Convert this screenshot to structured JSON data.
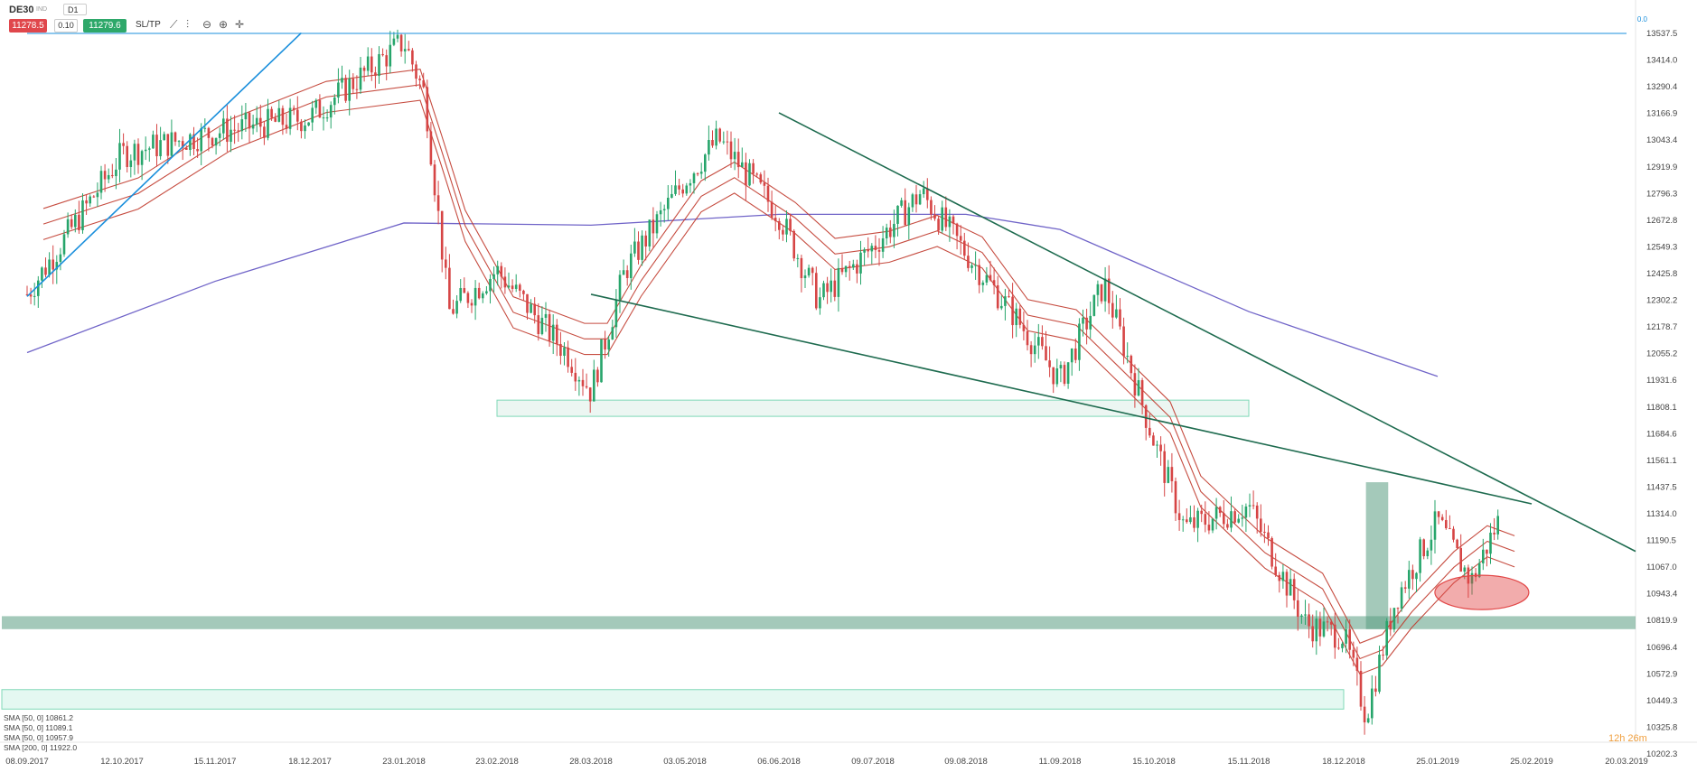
{
  "toolbar": {
    "symbol": "DE30",
    "source": "IND",
    "timeframe": "D1",
    "sell_price": "11278.5",
    "volume": "0.10",
    "buy_price": "11279.6",
    "sltp_label": "SL/TP",
    "icons": [
      "line-chart-icon",
      "candles-icon",
      "zoom-out-icon",
      "zoom-in-icon",
      "crosshair-icon"
    ]
  },
  "timer": "12h 26m",
  "indicators": [
    "SMA [50, 0]  10861.2",
    "SMA [50, 0]  11089.1",
    "SMA [50, 0]  10957.9",
    "SMA [200, 0]  11922.0"
  ],
  "chart_data": {
    "type": "candlestick",
    "instrument": "DE30",
    "timeframe": "D1",
    "x_tick_labels": [
      "08.09.2017",
      "12.10.2017",
      "15.11.2017",
      "18.12.2017",
      "23.01.2018",
      "23.02.2018",
      "28.03.2018",
      "03.05.2018",
      "06.06.2018",
      "09.07.2018",
      "09.08.2018",
      "11.09.2018",
      "15.10.2018",
      "15.11.2018",
      "18.12.2018",
      "25.01.2019",
      "25.02.2019",
      "20.03.2019"
    ],
    "y_tick_labels": [
      "13537.5",
      "13414.0",
      "13290.4",
      "13166.9",
      "13043.4",
      "12919.9",
      "12796.3",
      "12672.8",
      "12549.3",
      "12425.8",
      "12302.2",
      "12178.7",
      "12055.2",
      "11931.6",
      "11808.1",
      "11684.6",
      "11561.1",
      "11437.5",
      "11314.0",
      "11190.5",
      "11067.0",
      "10943.4",
      "10819.9",
      "10696.4",
      "10572.9",
      "10449.3",
      "10325.8",
      "10202.3"
    ],
    "ylim": [
      10202.3,
      13537.5
    ],
    "top_line_label": "0.0",
    "close_path": [
      [
        "08.09.2017",
        12330
      ],
      [
        "12.10.2017",
        12980
      ],
      [
        "15.11.2017",
        13080
      ],
      [
        "18.12.2017",
        13150
      ],
      [
        "23.01.2018",
        13500
      ],
      [
        "30.01.2018",
        13250
      ],
      [
        "07.02.2018",
        12250
      ],
      [
        "23.02.2018",
        12440
      ],
      [
        "20.03.2018",
        12050
      ],
      [
        "28.03.2018",
        11880
      ],
      [
        "10.04.2018",
        12440
      ],
      [
        "03.05.2018",
        12860
      ],
      [
        "15.05.2018",
        13050
      ],
      [
        "06.06.2018",
        12700
      ],
      [
        "20.06.2018",
        12300
      ],
      [
        "09.07.2018",
        12550
      ],
      [
        "25.07.2018",
        12800
      ],
      [
        "09.08.2018",
        12520
      ],
      [
        "25.08.2018",
        12250
      ],
      [
        "11.09.2018",
        11930
      ],
      [
        "27.09.2018",
        12380
      ],
      [
        "15.10.2018",
        11650
      ],
      [
        "25.10.2018",
        11250
      ],
      [
        "15.11.2018",
        11350
      ],
      [
        "05.12.2018",
        10800
      ],
      [
        "18.12.2018",
        10750
      ],
      [
        "27.12.2018",
        10380
      ],
      [
        "08.01.2019",
        10920
      ],
      [
        "25.01.2019",
        11280
      ],
      [
        "05.02.2019",
        11000
      ],
      [
        "14.02.2019",
        11280
      ]
    ],
    "moving_averages": [
      {
        "name": "SMA [50, 0]",
        "value": 10861.2
      },
      {
        "name": "SMA [50, 0]",
        "value": 11089.1
      },
      {
        "name": "SMA [50, 0]",
        "value": 10957.9
      },
      {
        "name": "SMA [200, 0]",
        "value": 11922.0
      }
    ],
    "trendlines": [
      {
        "from": [
          "08.09.2017",
          12320
        ],
        "to": [
          "15.12.2017",
          13540
        ],
        "color": "#1a8fdc"
      },
      {
        "from": [
          "06.06.2018",
          13170
        ],
        "to": [
          "20.03.2019",
          11140
        ],
        "color": "#1e6b4f"
      },
      {
        "from": [
          "28.03.2018",
          12330
        ],
        "to": [
          "25.02.2019",
          11360
        ],
        "color": "#1e6b4f"
      },
      {
        "from": [
          "08.09.2017",
          13537.5
        ],
        "to": [
          "20.03.2019",
          13537.5
        ],
        "color": "#1a8fdc"
      }
    ],
    "zones": [
      {
        "y": [
          11765,
          11840
        ],
        "from": "23.02.2018",
        "to": "15.11.2018",
        "color": "#eaf5f1"
      },
      {
        "y": [
          10780,
          10840
        ],
        "from": "08.09.2017",
        "to": "20.03.2019",
        "color": "#5a9c82"
      },
      {
        "y": [
          10410,
          10500
        ],
        "from": "08.09.2017",
        "to": "18.12.2018",
        "color": "#e1f7ef"
      },
      {
        "y": [
          10780,
          11460
        ],
        "from": "27.12.2018",
        "to": "05.01.2019",
        "color": "#5a9c82"
      }
    ],
    "ellipse_highlight": {
      "center": [
        "05.02.2019",
        10950
      ],
      "color": "#e24848"
    }
  }
}
